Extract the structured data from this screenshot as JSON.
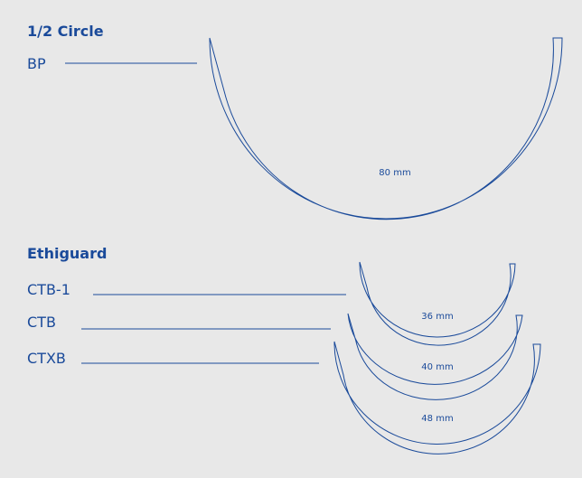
{
  "sections": [
    {
      "title": "1/2 Circle",
      "items": [
        {
          "label": "BP",
          "size": "80 mm"
        }
      ]
    },
    {
      "title": "Ethiguard",
      "items": [
        {
          "label": "CTB-1",
          "size": "36 mm"
        },
        {
          "label": "CTB",
          "size": "40 mm"
        },
        {
          "label": "CTXB",
          "size": "48 mm"
        }
      ]
    }
  ]
}
